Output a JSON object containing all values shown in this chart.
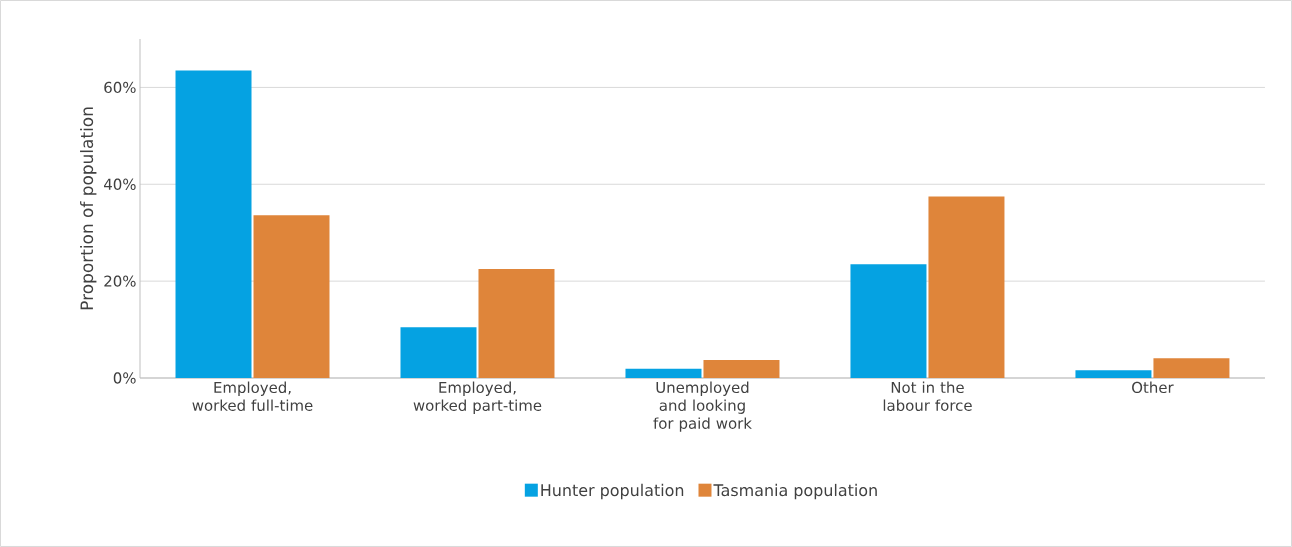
{
  "chart_data": {
    "type": "bar",
    "ylabel": "Proportion of population",
    "categories": [
      "Employed, worked full-time",
      "Employed, worked part-time",
      "Unemployed and looking for paid work",
      "Not in the labour force",
      "Other"
    ],
    "series": [
      {
        "name": "Hunter population",
        "color": "#05a2e2",
        "values": [
          63.5,
          10.5,
          1.9,
          23.5,
          1.6
        ]
      },
      {
        "name": "Tasmania population",
        "color": "#df853a",
        "values": [
          33.6,
          22.5,
          3.7,
          37.5,
          4.1
        ]
      }
    ],
    "ylim": [
      0,
      70
    ],
    "yticks": [
      {
        "value": 0,
        "label": "0%"
      },
      {
        "value": 20,
        "label": "20%"
      },
      {
        "value": 40,
        "label": "40%"
      },
      {
        "value": 60,
        "label": "60%"
      }
    ],
    "grid": "y",
    "legend": "bottom"
  }
}
